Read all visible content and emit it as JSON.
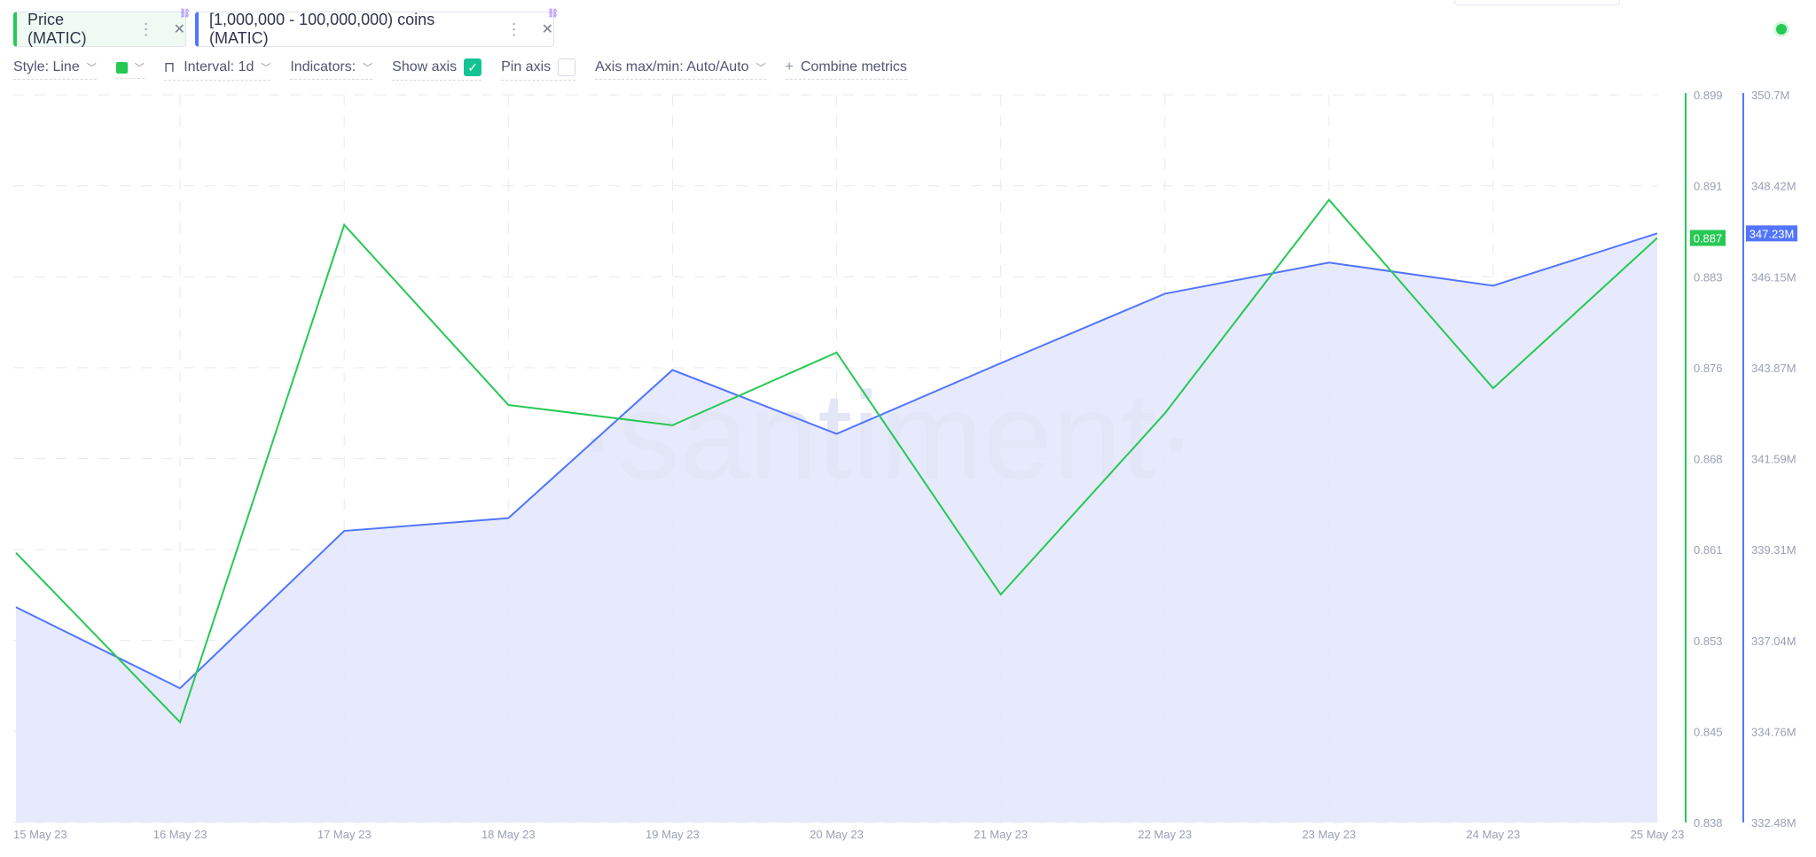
{
  "tabs": [
    {
      "label": "Price (MATIC)",
      "color": "#26c953"
    },
    {
      "label": "[1,000,000 - 100,000,000) coins (MATIC)",
      "color": "#5275ff"
    }
  ],
  "toolbar": {
    "style": "Style: Line",
    "interval": "Interval: 1d",
    "indicators": "Indicators:",
    "show_axis": "Show axis",
    "show_axis_checked": true,
    "pin_axis": "Pin axis",
    "pin_axis_checked": false,
    "axis_maxmin": "Axis max/min: Auto/Auto",
    "combine": "Combine metrics"
  },
  "watermark": "·santiment·",
  "chart_data": {
    "type": "line",
    "x": [
      "15 May 23",
      "16 May 23",
      "17 May 23",
      "18 May 23",
      "19 May 23",
      "20 May 23",
      "21 May 23",
      "22 May 23",
      "23 May 23",
      "24 May 23",
      "25 May 23"
    ],
    "series": [
      {
        "name": "Price (MATIC)",
        "color": "#26c953",
        "axis": "left",
        "values": [
          0.8606,
          0.8464,
          0.8881,
          0.873,
          0.8713,
          0.8774,
          0.8571,
          0.8723,
          0.8902,
          0.8744,
          0.887
        ]
      },
      {
        "name": "[1,000,000 - 100,000,000) coins (MATIC)",
        "color": "#5275ff",
        "fill": "#e3e8fc",
        "axis": "right",
        "values": [
          337.87,
          335.84,
          339.78,
          340.1,
          343.81,
          342.21,
          343.98,
          345.72,
          346.5,
          345.92,
          347.23
        ]
      }
    ],
    "price_axis": {
      "range": [
        0.838,
        0.899
      ],
      "ticks": [
        "0.899",
        "0.891",
        "0.883",
        "0.876",
        "0.868",
        "0.861",
        "0.853",
        "0.845",
        "0.838"
      ],
      "last_label": "0.887"
    },
    "holders_axis": {
      "range": [
        332.48,
        350.7
      ],
      "ticks": [
        "350.7M",
        "348.42M",
        "346.15M",
        "343.87M",
        "341.59M",
        "339.31M",
        "337.04M",
        "334.76M",
        "332.48M"
      ],
      "last_label": "347.23M"
    },
    "grid": true
  }
}
